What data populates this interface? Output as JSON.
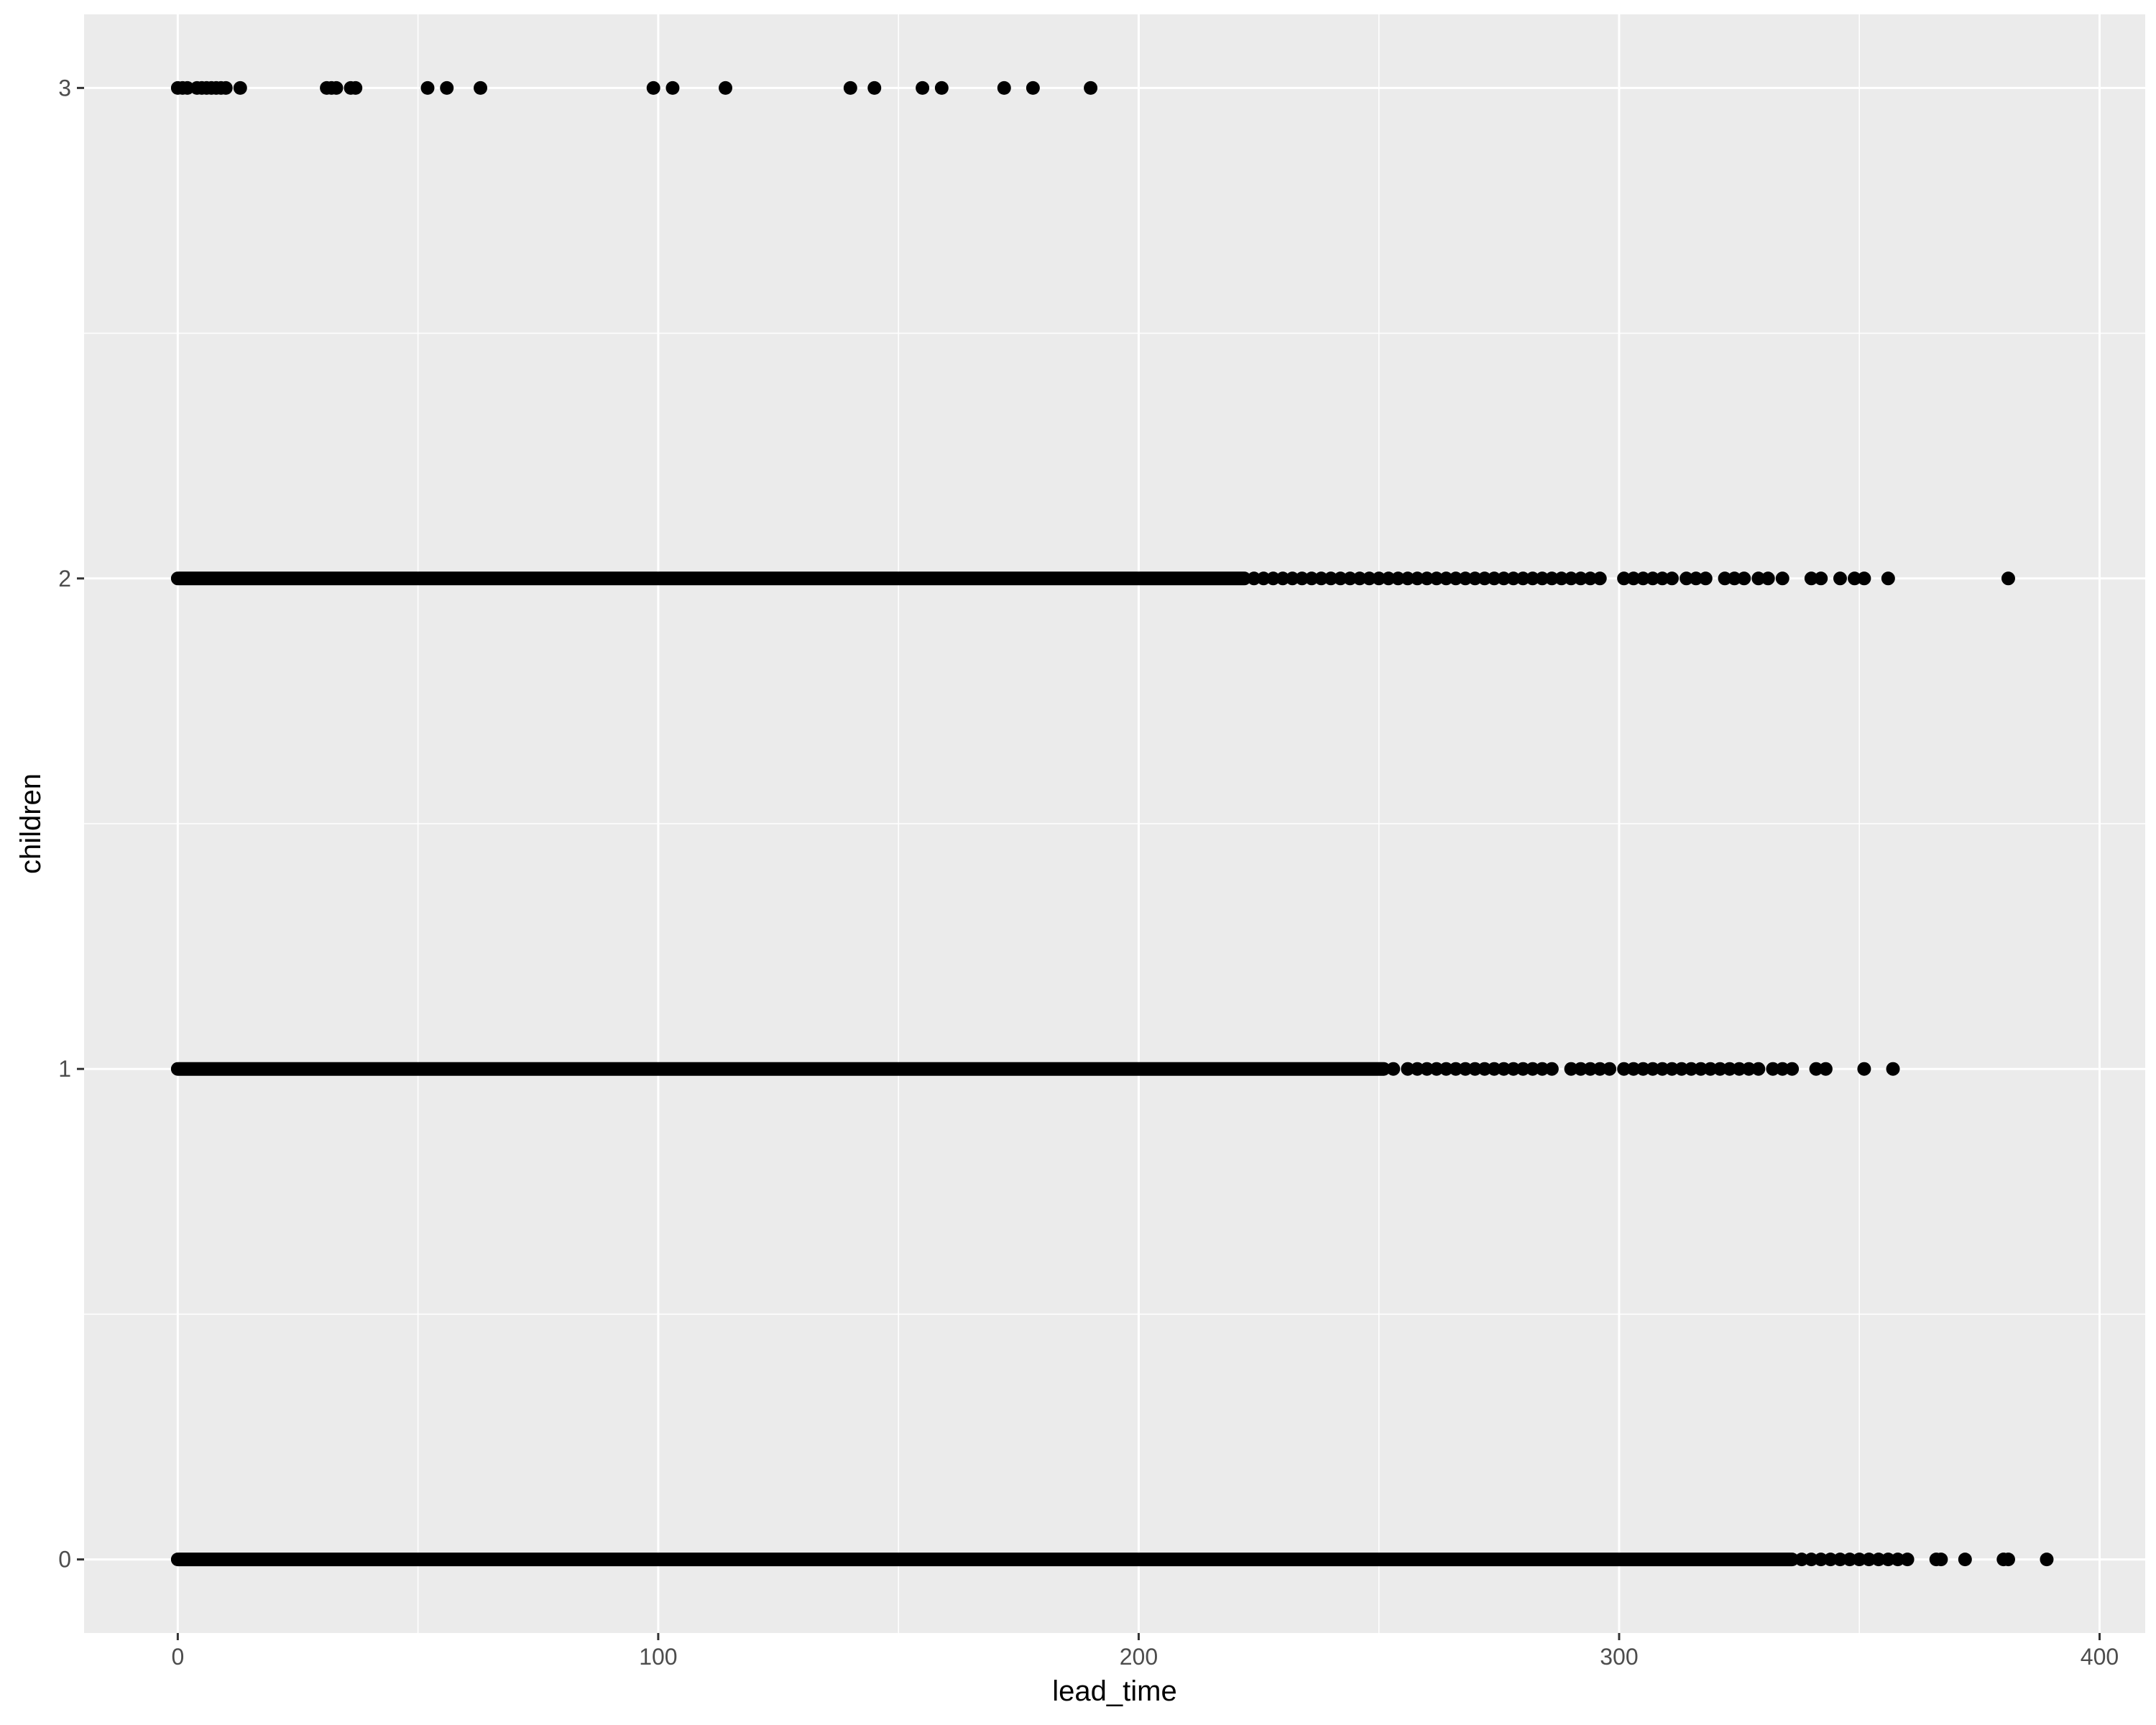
{
  "chart_data": {
    "type": "scatter",
    "title": "",
    "xlabel": "lead_time",
    "ylabel": "children",
    "xlim": [
      -19.5,
      409.5
    ],
    "ylim": [
      -0.15,
      3.15
    ],
    "x_ticks": [
      0,
      100,
      200,
      300,
      400
    ],
    "x_tick_labels": [
      "0",
      "100",
      "200",
      "300",
      "400"
    ],
    "y_ticks": [
      0,
      1,
      2,
      3
    ],
    "y_tick_labels": [
      "0",
      "1",
      "2",
      "3"
    ],
    "grid": true,
    "legend": "none",
    "series": [
      {
        "name": "children = 0",
        "y": 0,
        "dense_range": [
          0,
          336
        ],
        "x": [
          338,
          340,
          342,
          344,
          346,
          348,
          350,
          352,
          354,
          356,
          358,
          360,
          366,
          367,
          372,
          380,
          381,
          389
        ]
      },
      {
        "name": "children = 1",
        "y": 1,
        "dense_range": [
          0,
          251
        ],
        "x": [
          253,
          256,
          258,
          260,
          262,
          264,
          266,
          268,
          270,
          272,
          274,
          276,
          278,
          280,
          282,
          284,
          286,
          290,
          292,
          294,
          296,
          298,
          301,
          303,
          305,
          307,
          309,
          311,
          313,
          315,
          317,
          319,
          321,
          323,
          325,
          327,
          329,
          332,
          334,
          336,
          341,
          343,
          351,
          357
        ]
      },
      {
        "name": "children = 2",
        "y": 2,
        "dense_range": [
          0,
          222
        ],
        "x": [
          224,
          226,
          228,
          230,
          232,
          234,
          236,
          238,
          240,
          242,
          244,
          246,
          248,
          250,
          252,
          254,
          256,
          258,
          260,
          262,
          264,
          266,
          268,
          270,
          272,
          274,
          276,
          278,
          280,
          282,
          284,
          286,
          288,
          290,
          292,
          294,
          296,
          301,
          303,
          305,
          307,
          309,
          311,
          314,
          316,
          318,
          322,
          324,
          326,
          329,
          331,
          334,
          340,
          342,
          346,
          349,
          351,
          356,
          381
        ]
      },
      {
        "name": "children = 3",
        "y": 3,
        "x": [
          0,
          1,
          2,
          4,
          5,
          6,
          7,
          8,
          9,
          10,
          13,
          31,
          32,
          33,
          36,
          37,
          52,
          56,
          63,
          99,
          103,
          114,
          140,
          145,
          155,
          159,
          172,
          178,
          190
        ]
      }
    ]
  }
}
